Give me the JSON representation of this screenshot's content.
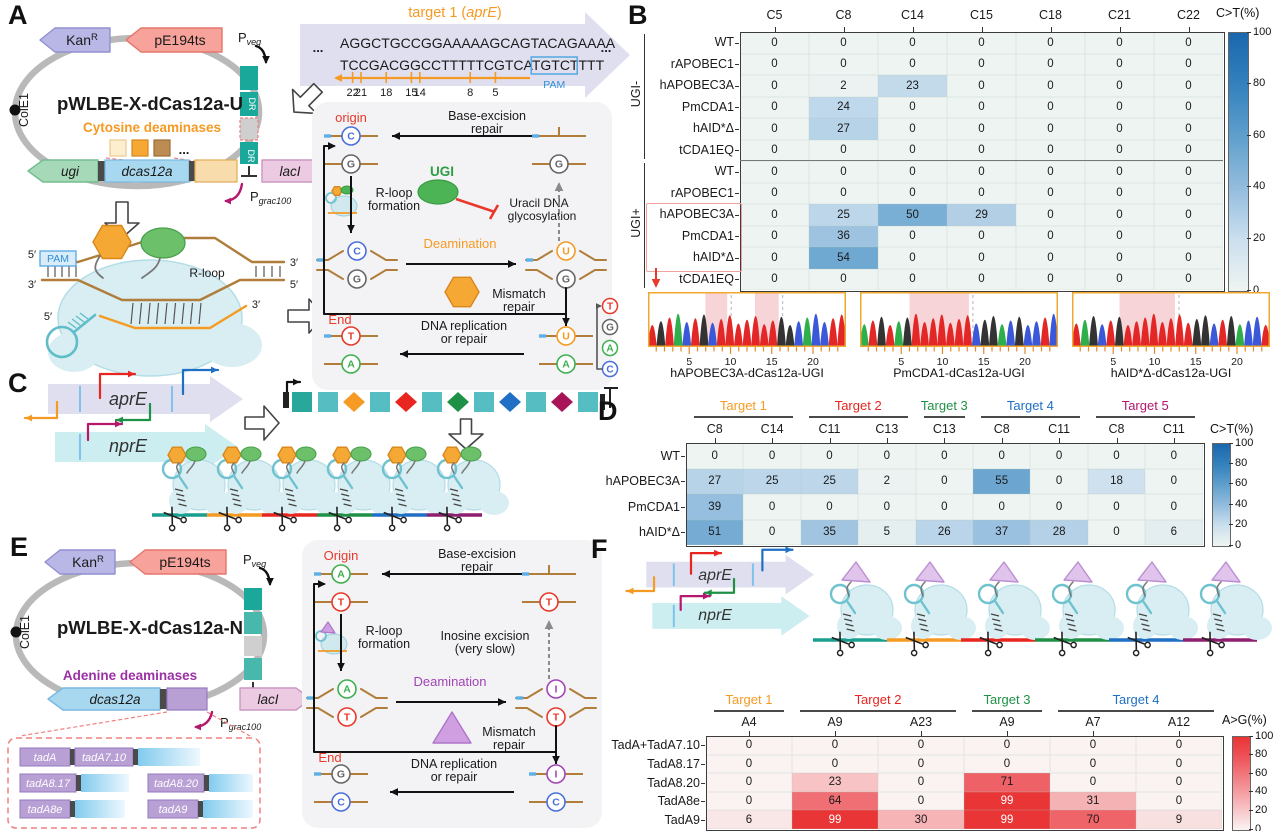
{
  "colors": {
    "accent_orange": "#f59a23",
    "accent_red": "#e8251f",
    "accent_green": "#1e9146",
    "accent_blue": "#1f6fc4",
    "accent_magenta": "#b5176e",
    "accent_teal": "#1a9e8f",
    "accent_purple": "#8e1f6e",
    "base_T": "#e8392b",
    "base_G": "#666666",
    "base_A": "#3faf4f",
    "base_C": "#4a6fd8",
    "base_U": "#f59a23",
    "base_I": "#a244b5",
    "ugi_green": "#4cb454",
    "deaminase_orange": "#f5a833",
    "adenine_purple": "#cf9fe2",
    "heat_blue_max": "#1a67ad",
    "heat_red_max": "#e93434"
  },
  "figure": {
    "panels": {
      "a": "A",
      "b": "B",
      "c": "C",
      "d": "D",
      "e": "E",
      "f": "F"
    }
  },
  "panel_a": {
    "plasmid": {
      "title": "pWLBE-X-dCas12a-U",
      "kan": "Kan",
      "kan_sup": "R",
      "rep": "pE194ts",
      "ori": "ColE1",
      "p_veg": "P",
      "p_veg_sub": "veg",
      "p_grac": "P",
      "p_grac_sub": "grac100",
      "dr": "DR",
      "deaminase_label": "Cytosine deaminases",
      "dots": "...",
      "gene_ugi": "ugi",
      "gene_dcas": "dcas12a",
      "gene_laci": "lacI"
    },
    "target": {
      "title_prefix": "target 1 (",
      "gene": "aprE",
      "title_suffix": ")",
      "ellipsis": "...",
      "top_strand": "AGGCTGCCGGAAAAAGCAGTACAGAAAA",
      "bottom_strand": "TCCGACGGCCTTTTTCGTCATGTCTTTT",
      "pam_length": 5,
      "pam_label": "PAM",
      "positions": [
        22,
        21,
        18,
        15,
        14,
        8,
        5
      ]
    },
    "complex": {
      "pam_label": "PAM",
      "rloop_label": "R-loop",
      "five_prime": "5′",
      "three_prime": "3′"
    },
    "mechanism": {
      "origin_label": "origin",
      "end_label": "End",
      "base_excision": [
        "Base-excision",
        "repair"
      ],
      "rloop": [
        "R-loop",
        "formation"
      ],
      "ugi_label": "UGI",
      "inhibited": [
        "Uracil DNA",
        "glycosylation"
      ],
      "deamination_label": "Deamination",
      "mismatch": [
        "Mismatch",
        "repair"
      ],
      "replication": [
        "DNA replication",
        "or repair"
      ],
      "pairs": {
        "origin": [
          "C",
          "G"
        ],
        "excised_bottom": "G",
        "deaminated": [
          "U",
          "G"
        ],
        "resolved": [
          "U",
          "A"
        ],
        "end": [
          "T",
          "A"
        ]
      }
    }
  },
  "panel_b": {
    "group_labels": [
      "UGI-",
      "UGI+"
    ],
    "base_legend": [
      "T",
      "G",
      "A",
      "C"
    ],
    "chromatograms": [
      {
        "label": "hAPOBEC3A-dCas12a-UGI",
        "axis_ticks": [
          5,
          10,
          15,
          20
        ],
        "highlights": [
          [
            0.29,
            0.4
          ],
          [
            0.54,
            0.66
          ]
        ]
      },
      {
        "label": "PmCDA1-dCas12a-UGI",
        "axis_ticks": [
          5,
          10,
          15,
          20
        ],
        "highlights": [
          [
            0.25,
            0.55
          ]
        ]
      },
      {
        "label": "hAID*Δ-dCas12a-UGI",
        "axis_ticks": [
          5,
          10,
          15,
          20
        ],
        "highlights": [
          [
            0.24,
            0.52
          ]
        ]
      }
    ]
  },
  "panel_c": {
    "gene_top": "aprE",
    "gene_bottom": "nprE"
  },
  "panel_e": {
    "plasmid": {
      "title": "pWLBE-X-dCas12a-N",
      "kan": "Kan",
      "kan_sup": "R",
      "rep": "pE194ts",
      "ori": "ColE1",
      "p_veg": "P",
      "p_veg_sub": "veg",
      "p_grac": "P",
      "p_grac_sub": "grac100",
      "deaminase_label": "Adenine deaminases",
      "gene_dcas": "dcas12a",
      "gene_laci": "lacI"
    },
    "variants": {
      "row1": [
        "tadA",
        "tadA7.10"
      ],
      "row2": [
        "tadA8.17",
        "tadA8.20"
      ],
      "row3": [
        "tadA8e",
        "tadA9"
      ]
    },
    "mechanism": {
      "origin_label": "Origin",
      "end_label": "End",
      "base_excision": [
        "Base-excision",
        "repair"
      ],
      "rloop": [
        "R-loop",
        "formation"
      ],
      "inosine": [
        "Inosine excision",
        "(very slow)"
      ],
      "deamination_label": "Deamination",
      "mismatch": [
        "Mismatch",
        "repair"
      ],
      "replication": [
        "DNA replication",
        "or repair"
      ],
      "pairs": {
        "origin": [
          "A",
          "T"
        ],
        "excised_bottom": "T",
        "deaminated": [
          "I",
          "T"
        ],
        "resolved": [
          "I",
          "C"
        ],
        "end": [
          "G",
          "C"
        ]
      }
    }
  },
  "panel_f": {
    "gene_top": "aprE",
    "gene_bottom": "nprE"
  },
  "chart_data": [
    {
      "id": "B",
      "type": "heatmap",
      "colorbar_label": "C>T(%)",
      "colorbar_ticks": [
        100,
        80,
        60,
        40,
        20,
        0
      ],
      "scale": "blue",
      "value_range": [
        0,
        100
      ],
      "columns": [
        "C5",
        "C8",
        "C14",
        "C15",
        "C18",
        "C21",
        "C22"
      ],
      "row_groups": [
        {
          "label": "UGI-",
          "rows": [
            "WT",
            "rAPOBEC1",
            "hAPOBEC3A",
            "PmCDA1",
            "hAID*Δ",
            "tCDA1EQ"
          ],
          "values": [
            [
              0,
              0,
              0,
              0,
              0,
              0,
              0
            ],
            [
              0,
              0,
              0,
              0,
              0,
              0,
              0
            ],
            [
              0,
              2,
              23,
              0,
              0,
              0,
              0
            ],
            [
              0,
              24,
              0,
              0,
              0,
              0,
              0
            ],
            [
              0,
              27,
              0,
              0,
              0,
              0,
              0
            ],
            [
              0,
              0,
              0,
              0,
              0,
              0,
              0
            ]
          ]
        },
        {
          "label": "UGI+",
          "rows": [
            "WT",
            "rAPOBEC1",
            "hAPOBEC3A",
            "PmCDA1",
            "hAID*Δ",
            "tCDA1EQ"
          ],
          "values": [
            [
              0,
              0,
              0,
              0,
              0,
              0,
              0
            ],
            [
              0,
              0,
              0,
              0,
              0,
              0,
              0
            ],
            [
              0,
              25,
              50,
              29,
              0,
              0,
              0
            ],
            [
              0,
              36,
              0,
              0,
              0,
              0,
              0
            ],
            [
              0,
              54,
              0,
              0,
              0,
              0,
              0
            ],
            [
              0,
              0,
              0,
              0,
              0,
              0,
              0
            ]
          ]
        }
      ],
      "highlighted_rows_group2": [
        "hAPOBEC3A",
        "PmCDA1",
        "hAID*Δ"
      ]
    },
    {
      "id": "D",
      "type": "heatmap",
      "colorbar_label": "C>T(%)",
      "colorbar_ticks": [
        100,
        80,
        60,
        40,
        20,
        0
      ],
      "scale": "blue",
      "value_range": [
        0,
        100
      ],
      "target_groups": [
        {
          "label": "Target 1",
          "color": "#f59a23",
          "cols": [
            "C8",
            "C14"
          ]
        },
        {
          "label": "Target 2",
          "color": "#e8251f",
          "cols": [
            "C11",
            "C13"
          ]
        },
        {
          "label": "Target 3",
          "color": "#1e9146",
          "cols": [
            "C13"
          ]
        },
        {
          "label": "Target 4",
          "color": "#1f6fc4",
          "cols": [
            "C8",
            "C11"
          ]
        },
        {
          "label": "Target 5",
          "color": "#b5176e",
          "cols": [
            "C8",
            "C11"
          ]
        }
      ],
      "rows": [
        "WT",
        "hAPOBEC3A",
        "PmCDA1",
        "hAID*Δ"
      ],
      "values": [
        [
          0,
          0,
          0,
          0,
          0,
          0,
          0,
          0,
          0
        ],
        [
          27,
          25,
          25,
          2,
          0,
          55,
          0,
          18,
          0
        ],
        [
          39,
          0,
          0,
          0,
          0,
          0,
          0,
          0,
          0
        ],
        [
          51,
          0,
          35,
          5,
          26,
          37,
          28,
          0,
          6
        ]
      ]
    },
    {
      "id": "F",
      "type": "heatmap",
      "colorbar_label": "A>G(%)",
      "colorbar_ticks": [
        100,
        80,
        60,
        40,
        20,
        0
      ],
      "scale": "red",
      "value_range": [
        0,
        100
      ],
      "target_groups": [
        {
          "label": "Target 1",
          "color": "#f59a23",
          "cols": [
            "A4"
          ]
        },
        {
          "label": "Target 2",
          "color": "#e8251f",
          "cols": [
            "A9",
            "A23"
          ]
        },
        {
          "label": "Target 3",
          "color": "#1e9146",
          "cols": [
            "A9"
          ]
        },
        {
          "label": "Target 4",
          "color": "#1f6fc4",
          "cols": [
            "A7",
            "A12"
          ]
        }
      ],
      "rows": [
        "TadA+TadA7.10",
        "TadA8.17",
        "TadA8.20",
        "TadA8e",
        "TadA9"
      ],
      "values": [
        [
          0,
          0,
          0,
          0,
          0,
          0
        ],
        [
          0,
          0,
          0,
          0,
          0,
          0
        ],
        [
          0,
          23,
          0,
          71,
          0,
          0
        ],
        [
          0,
          64,
          0,
          99,
          31,
          0
        ],
        [
          6,
          99,
          30,
          99,
          70,
          9
        ]
      ]
    }
  ]
}
